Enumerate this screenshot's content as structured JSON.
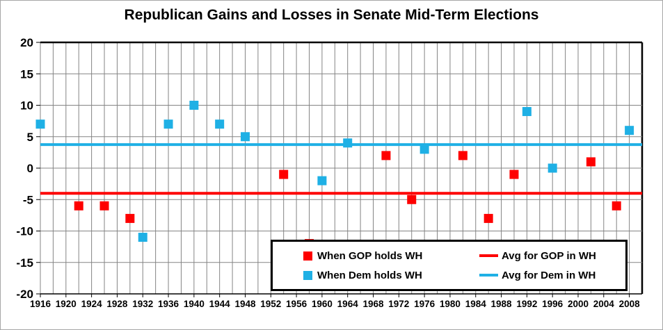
{
  "title": "Republican Gains and Losses in Senate Mid-Term Elections",
  "colors": {
    "gop": "#fe0000",
    "dem": "#1fb0e5",
    "grid": "#848484",
    "axis": "#000000",
    "text": "#000000",
    "background": "#ffffff"
  },
  "legend": {
    "gop_points_label": "When GOP holds WH",
    "gop_avg_label": "Avg for GOP in WH",
    "dem_points_label": "When Dem holds WH",
    "dem_avg_label": "Avg for Dem in WH"
  },
  "chart_data": {
    "type": "scatter",
    "title": "Republican Gains and Losses in Senate Mid-Term Elections",
    "xlabel": "",
    "ylabel": "",
    "grid": true,
    "legend_position": "bottom-right-inside",
    "x_axis": {
      "min": 1916,
      "max": 2010,
      "gridline_step": 2,
      "tick_label_step": 4,
      "tick_labels": [
        "1916",
        "1920",
        "1924",
        "1928",
        "1932",
        "1936",
        "1940",
        "1944",
        "1948",
        "1952",
        "1956",
        "1960",
        "1964",
        "1968",
        "1972",
        "1976",
        "1980",
        "1984",
        "1988",
        "1992",
        "1996",
        "2000",
        "2004",
        "2008"
      ]
    },
    "y_axis": {
      "min": -20,
      "max": 20,
      "gridline_step": 5,
      "tick_labels": [
        "20",
        "15",
        "10",
        "5",
        "0",
        "-5",
        "-10",
        "-15",
        "-20"
      ]
    },
    "series": [
      {
        "name": "When GOP holds WH",
        "color_key": "gop",
        "marker": "square",
        "points": [
          [
            1922,
            -6
          ],
          [
            1926,
            -6
          ],
          [
            1930,
            -8
          ],
          [
            1954,
            -1
          ],
          [
            1958,
            -12
          ],
          [
            1970,
            2
          ],
          [
            1974,
            -5
          ],
          [
            1982,
            2
          ],
          [
            1986,
            -8
          ],
          [
            1990,
            -1
          ],
          [
            2002,
            1
          ],
          [
            2006,
            -6
          ]
        ]
      },
      {
        "name": "When Dem holds WH",
        "color_key": "dem",
        "marker": "square",
        "points": [
          [
            1916,
            7
          ],
          [
            1932,
            -11
          ],
          [
            1936,
            7
          ],
          [
            1940,
            10
          ],
          [
            1944,
            7
          ],
          [
            1948,
            5
          ],
          [
            1960,
            -2
          ],
          [
            1964,
            4
          ],
          [
            1976,
            3
          ],
          [
            1992,
            9
          ],
          [
            1996,
            0
          ],
          [
            2008,
            6
          ]
        ]
      }
    ],
    "avg_lines": [
      {
        "name": "Avg for GOP in WH",
        "value": -4,
        "color_key": "gop"
      },
      {
        "name": "Avg for Dem in WH",
        "value": 3.75,
        "color_key": "dem"
      }
    ]
  }
}
